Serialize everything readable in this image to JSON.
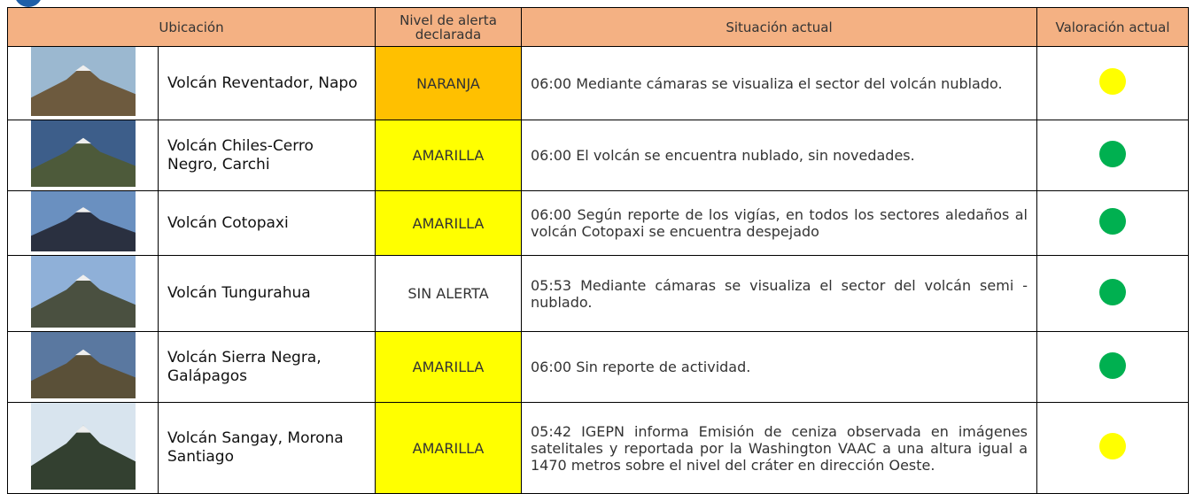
{
  "header": {
    "columns": [
      "Ubicación",
      "Nivel de alerta declarada",
      "Situación actual",
      "Valoración actual"
    ]
  },
  "rows": [
    {
      "location": "Volcán Reventador, Napo",
      "alert": "NARANJA",
      "alert_color": "#ffc000",
      "situation": "06:00 Mediante cámaras se visualiza el sector del volcán nublado.",
      "rating_color": "#ffff00"
    },
    {
      "location": "Volcán Chiles-Cerro Negro, Carchi",
      "alert": "AMARILLA",
      "alert_color": "#ffff00",
      "situation": "06:00 El volcán se encuentra nublado, sin novedades.",
      "rating_color": "#00b050"
    },
    {
      "location": "Volcán Cotopaxi",
      "alert": "AMARILLA",
      "alert_color": "#ffff00",
      "situation": "06:00 Según reporte de los vigías, en todos los sectores aledaños al volcán Cotopaxi se encuentra despejado",
      "rating_color": "#00b050"
    },
    {
      "location": "Volcán Tungurahua",
      "alert": "SIN ALERTA",
      "alert_color": "#ffffff",
      "situation": "05:53 Mediante cámaras se visualiza el sector del volcán semi - nublado.",
      "rating_color": "#00b050"
    },
    {
      "location": "Volcán Sierra Negra, Galápagos",
      "alert": "AMARILLA",
      "alert_color": "#ffff00",
      "situation": "06:00 Sin reporte de actividad.",
      "rating_color": "#00b050"
    },
    {
      "location": "Volcán Sangay, Morona Santiago",
      "alert": "AMARILLA",
      "alert_color": "#ffff00",
      "situation": "05:42 IGEPN informa Emisión de ceniza observada en imágenes satelitales y reportada por la Washington VAAC a una altura igual a 1470 metros sobre el nivel del cráter en dirección Oeste.",
      "rating_color": "#ffff00"
    }
  ]
}
